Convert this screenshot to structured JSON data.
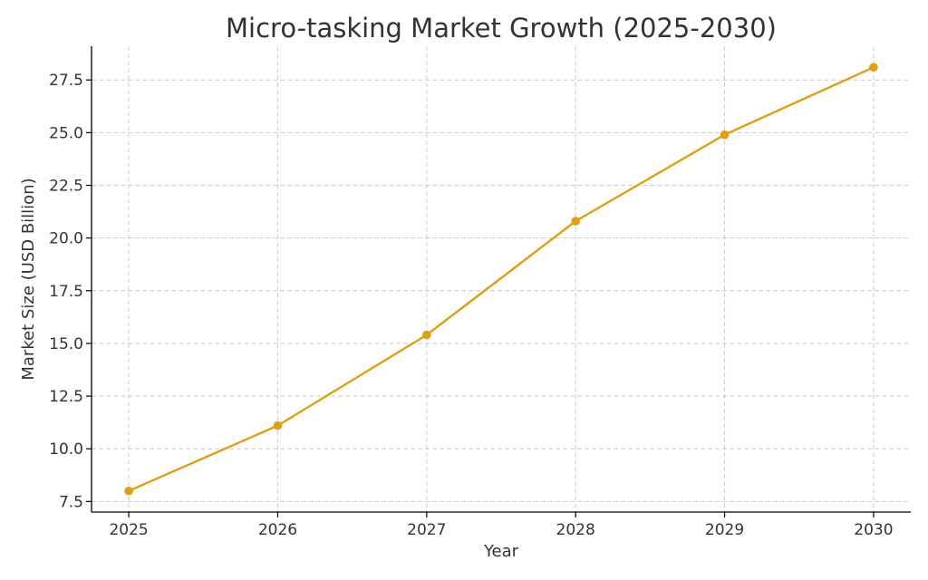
{
  "chart_data": {
    "type": "line",
    "title": "Micro-tasking Market Growth (2025-2030)",
    "xlabel": "Year",
    "ylabel": "Market Size (USD Billion)",
    "x": [
      2025,
      2026,
      2027,
      2028,
      2029,
      2030
    ],
    "series": [
      {
        "values": [
          8.0,
          11.1,
          15.4,
          20.8,
          24.9,
          28.1
        ],
        "color": "#e09f12",
        "marker": "circle"
      }
    ],
    "x_ticks": [
      "2025",
      "2026",
      "2027",
      "2028",
      "2029",
      "2030"
    ],
    "y_ticks": [
      "7.5",
      "10.0",
      "12.5",
      "15.0",
      "17.5",
      "20.0",
      "22.5",
      "25.0",
      "27.5"
    ],
    "xlim": [
      2024.75,
      2030.25
    ],
    "ylim": [
      7.0,
      29.1
    ],
    "grid": true,
    "legend": "none"
  }
}
